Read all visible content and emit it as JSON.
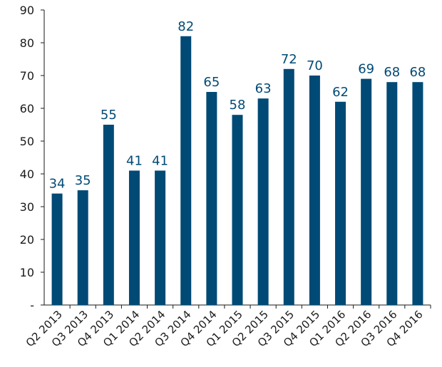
{
  "chart_data": {
    "type": "bar",
    "categories": [
      "Q2 2013",
      "Q3 2013",
      "Q4 2013",
      "Q1 2014",
      "Q2 2014",
      "Q3 2014",
      "Q4 2014",
      "Q1 2015",
      "Q2 2015",
      "Q3 2015",
      "Q4 2015",
      "Q1 2016",
      "Q2 2016",
      "Q3 2016",
      "Q4 2016"
    ],
    "values": [
      34,
      35,
      55,
      41,
      41,
      82,
      65,
      58,
      63,
      72,
      70,
      62,
      69,
      68,
      68
    ],
    "value_labels": [
      "34",
      "35",
      "55",
      "41",
      "41",
      "82",
      "65",
      "58",
      "63",
      "72",
      "70",
      "62",
      "69",
      "68",
      "68"
    ],
    "y_ticks": [
      "-",
      "10",
      "20",
      "30",
      "40",
      "50",
      "60",
      "70",
      "80",
      "90"
    ],
    "ylim": [
      0,
      90
    ],
    "title": "",
    "xlabel": "",
    "ylabel": "",
    "grid": false,
    "bar_color": "#004a75",
    "label_color": "#004a75",
    "axis_color": "#1a1a1a"
  }
}
